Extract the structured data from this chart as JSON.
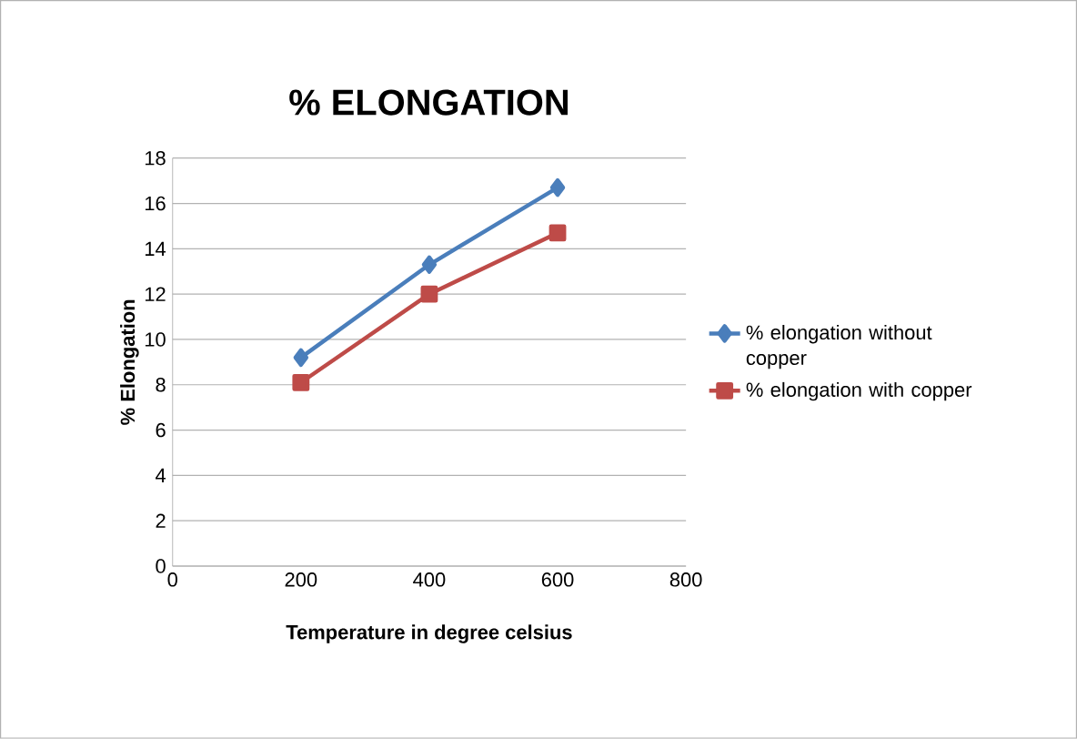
{
  "chart_data": {
    "type": "line",
    "title": "% ELONGATION",
    "xlabel": "Temperature in degree celsius",
    "ylabel": "% Elongation",
    "x": [
      200,
      400,
      600
    ],
    "series": [
      {
        "name": "% elongation without copper",
        "color": "#4a7ebb",
        "marker": "diamond",
        "values": [
          9.2,
          13.3,
          16.7
        ]
      },
      {
        "name": "% elongation with copper",
        "color": "#be4b48",
        "marker": "square",
        "values": [
          8.1,
          12.0,
          14.7
        ]
      }
    ],
    "xlim": [
      0,
      800
    ],
    "xticks": [
      0,
      200,
      400,
      600,
      800
    ],
    "ylim": [
      0,
      18
    ],
    "yticks": [
      0,
      2,
      4,
      6,
      8,
      10,
      12,
      14,
      16,
      18
    ],
    "grid": "y",
    "legend": "right",
    "line_style": "solid"
  }
}
